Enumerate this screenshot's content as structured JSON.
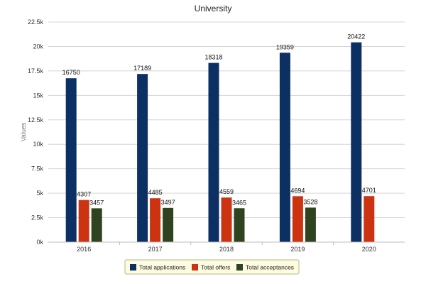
{
  "chart_data": {
    "type": "bar",
    "title": "University",
    "xlabel": "",
    "ylabel": "Values",
    "categories": [
      "2016",
      "2017",
      "2018",
      "2019",
      "2020"
    ],
    "series": [
      {
        "name": "Total applications",
        "color": "#0c3064",
        "values": [
          16750,
          17189,
          18318,
          19359,
          20422
        ]
      },
      {
        "name": "Total offers",
        "color": "#cc3411",
        "values": [
          4307,
          4485,
          4559,
          4694,
          4701
        ]
      },
      {
        "name": "Total acceptances",
        "color": "#2f4320",
        "values": [
          3457,
          3497,
          3465,
          3528,
          null
        ]
      }
    ],
    "ylim": [
      0,
      22500
    ],
    "yticks": [
      0,
      2500,
      5000,
      7500,
      10000,
      12500,
      15000,
      17500,
      20000,
      22500
    ],
    "ytick_labels": [
      "0k",
      "2.5k",
      "5k",
      "7.5k",
      "10k",
      "12.5k",
      "15k",
      "17.5k",
      "20k",
      "22.5k"
    ],
    "grid": true,
    "legend_position": "bottom"
  }
}
